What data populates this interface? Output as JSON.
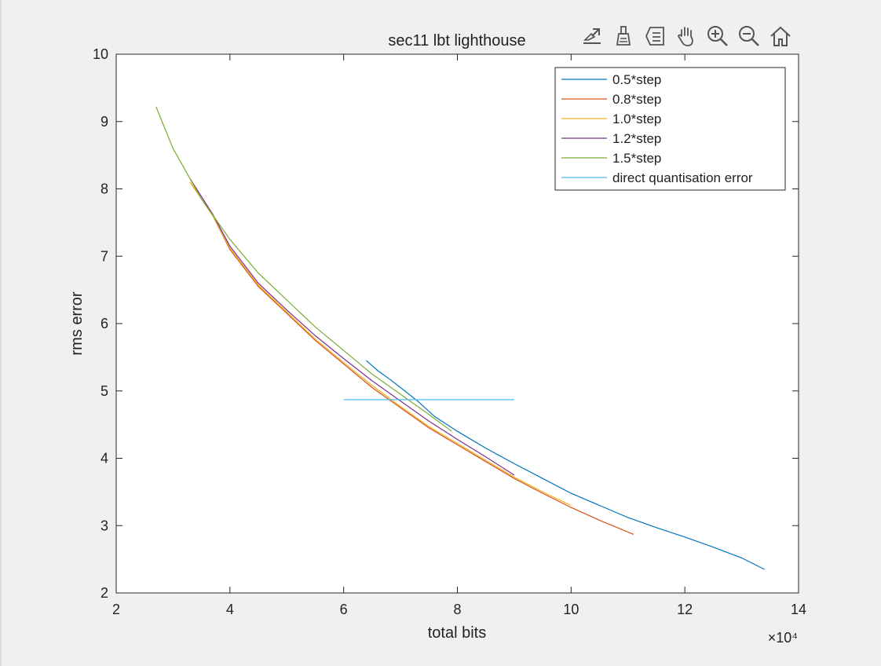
{
  "toolbar": {
    "icons": [
      "export-icon",
      "brush-icon",
      "legend-icon",
      "pan-icon",
      "zoom-in-icon",
      "zoom-out-icon",
      "home-icon"
    ]
  },
  "chart_data": {
    "type": "line",
    "title": "sec11 lbt lighthouse",
    "xlabel": "total bits",
    "ylabel": "rms error",
    "x_multiplier_label": "×10⁴",
    "xlim": [
      2,
      14
    ],
    "ylim": [
      2,
      10
    ],
    "xticks": [
      2,
      4,
      6,
      8,
      10,
      12,
      14
    ],
    "yticks": [
      2,
      3,
      4,
      5,
      6,
      7,
      8,
      9,
      10
    ],
    "legend_position": "top-right",
    "series": [
      {
        "name": "0.5*step",
        "color": "#0072BD",
        "x": [
          6.4,
          6.6,
          6.8,
          7.0,
          7.3,
          7.6,
          8.0,
          8.5,
          9.0,
          9.5,
          10.0,
          10.5,
          11.0,
          11.5,
          12.0,
          12.5,
          13.0,
          13.4
        ],
        "y": [
          5.45,
          5.3,
          5.18,
          5.05,
          4.85,
          4.62,
          4.4,
          4.15,
          3.92,
          3.7,
          3.48,
          3.3,
          3.12,
          2.97,
          2.83,
          2.68,
          2.52,
          2.35
        ]
      },
      {
        "name": "0.8*step",
        "color": "#D95319",
        "x": [
          3.3,
          3.7,
          4.0,
          4.5,
          5.0,
          5.5,
          6.0,
          6.5,
          7.0,
          7.5,
          8.0,
          8.5,
          9.0,
          9.5,
          10.0,
          10.5,
          11.1
        ],
        "y": [
          8.1,
          7.6,
          7.1,
          6.55,
          6.15,
          5.75,
          5.4,
          5.05,
          4.75,
          4.45,
          4.2,
          3.95,
          3.7,
          3.48,
          3.27,
          3.08,
          2.87
        ]
      },
      {
        "name": "1.0*step",
        "color": "#EDB120",
        "x": [
          3.3,
          3.7,
          4.0,
          4.5,
          5.0,
          5.5,
          6.0,
          6.5,
          7.0,
          7.5,
          8.0,
          8.5,
          9.0,
          9.5,
          10.0
        ],
        "y": [
          8.1,
          7.6,
          7.12,
          6.57,
          6.17,
          5.77,
          5.42,
          5.08,
          4.77,
          4.47,
          4.22,
          3.97,
          3.72,
          3.5,
          3.3
        ]
      },
      {
        "name": "1.2*step",
        "color": "#7E2F8E",
        "x": [
          3.3,
          3.7,
          4.0,
          4.5,
          5.0,
          5.5,
          6.0,
          6.5,
          7.0,
          7.5,
          8.0,
          8.5,
          9.0
        ],
        "y": [
          8.15,
          7.62,
          7.15,
          6.6,
          6.2,
          5.82,
          5.48,
          5.15,
          4.85,
          4.55,
          4.28,
          4.02,
          3.75
        ]
      },
      {
        "name": "1.5*step",
        "color": "#77AC30",
        "x": [
          2.7,
          3.0,
          3.5,
          4.0,
          4.5,
          5.0,
          5.5,
          6.0,
          6.5,
          7.0,
          7.5,
          7.9
        ],
        "y": [
          9.22,
          8.6,
          7.85,
          7.25,
          6.75,
          6.35,
          5.95,
          5.6,
          5.25,
          4.95,
          4.65,
          4.4
        ]
      },
      {
        "name": "direct quantisation error",
        "color": "#4DBEEE",
        "x": [
          6.0,
          9.0
        ],
        "y": [
          4.87,
          4.87
        ]
      }
    ]
  }
}
